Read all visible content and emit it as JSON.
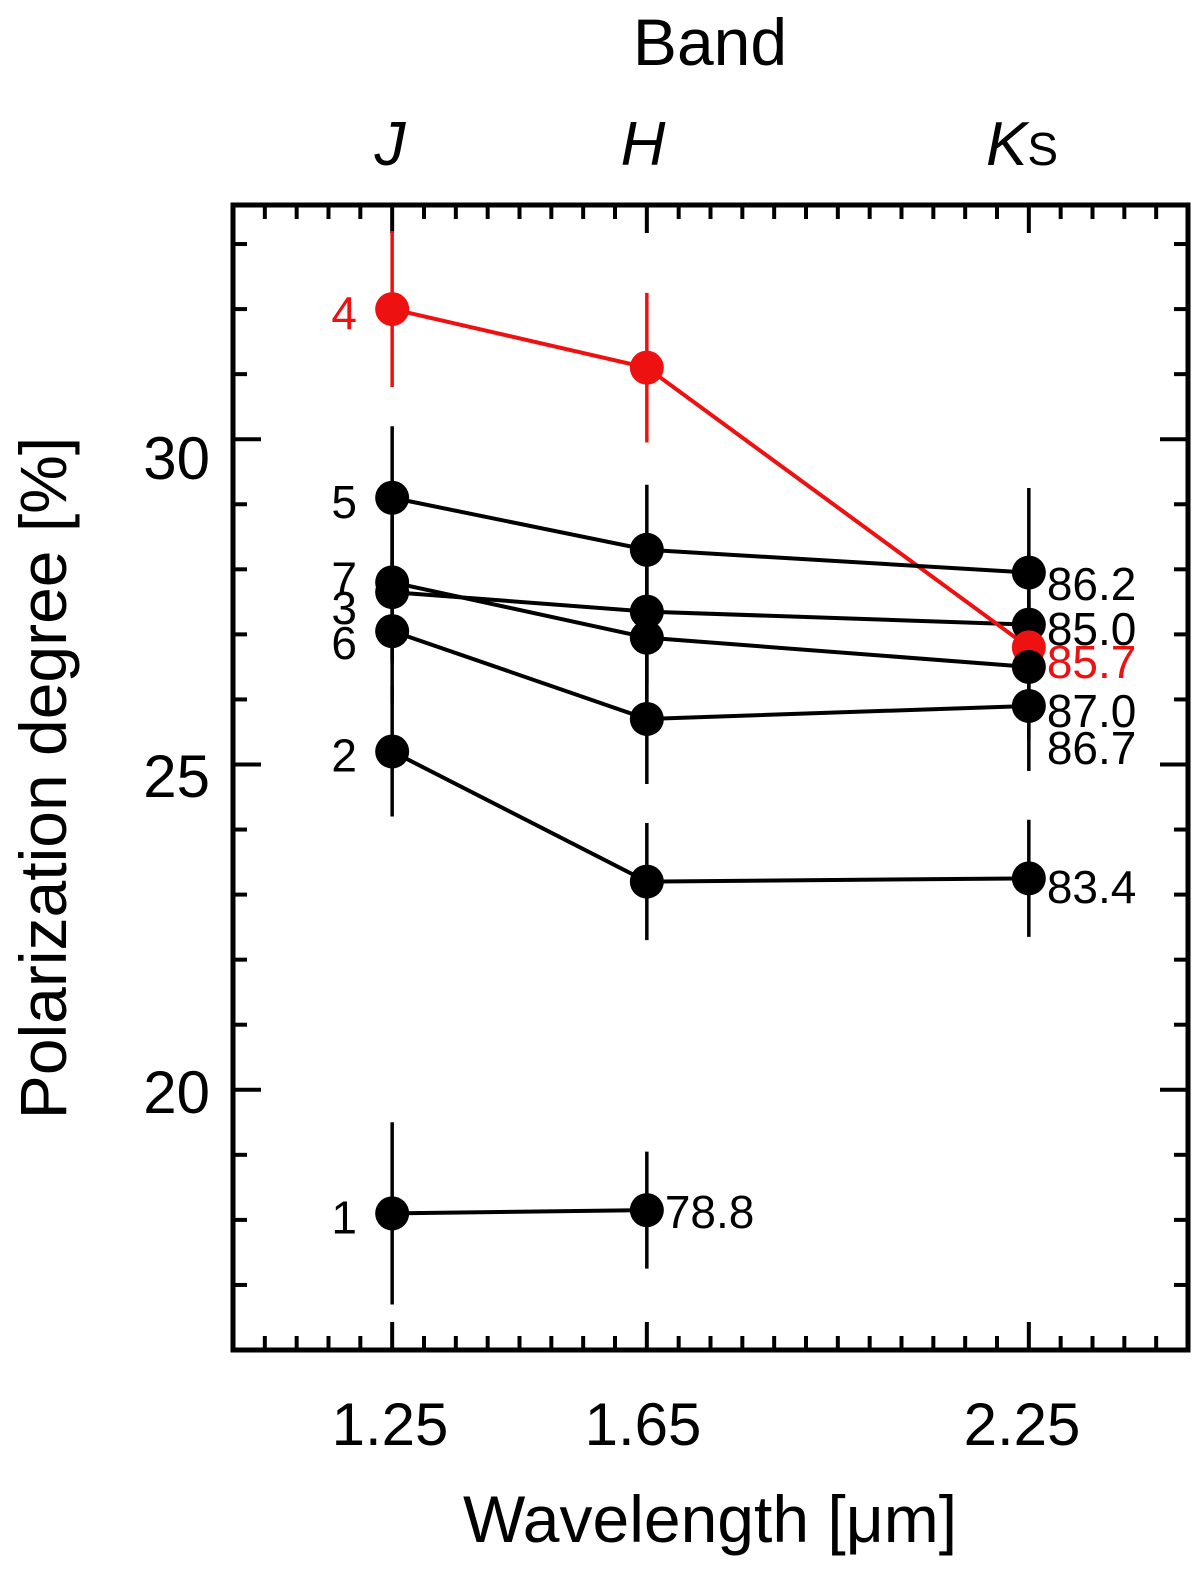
{
  "chart_data": {
    "type": "line",
    "top_axis_title": "Band",
    "bands": [
      {
        "name": "J",
        "sub": "",
        "x": 1.25
      },
      {
        "name": "H",
        "sub": "",
        "x": 1.65
      },
      {
        "name": "K",
        "sub": "S",
        "x": 2.25
      }
    ],
    "xlabel": "Wavelength [μm]",
    "ylabel": "Polarization degree [%]",
    "xlim": [
      1.0,
      2.5
    ],
    "ylim": [
      16.0,
      33.6
    ],
    "x_tick_labels": [
      "1.25",
      "1.65",
      "2.25"
    ],
    "x_tick_values": [
      1.25,
      1.65,
      2.25
    ],
    "y_tick_labels": [
      "20",
      "25",
      "30"
    ],
    "y_tick_values": [
      20,
      25,
      30
    ],
    "x_minor_step": 0.05,
    "y_minor_step": 1,
    "colors": {
      "default": "#000000",
      "highlight": "#ee1111"
    },
    "series": [
      {
        "name": "1",
        "highlight": false,
        "x": [
          1.25,
          1.65
        ],
        "y": [
          18.1,
          18.15
        ],
        "err": [
          1.4,
          0.9
        ],
        "end_label": "78.8"
      },
      {
        "name": "2",
        "highlight": false,
        "x": [
          1.25,
          1.65,
          2.25
        ],
        "y": [
          25.2,
          23.2,
          23.25
        ],
        "err": [
          1.0,
          0.9,
          0.9
        ],
        "end_label": "83.4"
      },
      {
        "name": "3",
        "highlight": false,
        "x": [
          1.25,
          1.65,
          2.25
        ],
        "y": [
          27.65,
          27.35,
          27.15
        ],
        "err": [
          1.1,
          1.1,
          1.1
        ],
        "end_label": "85.0"
      },
      {
        "name": "4",
        "highlight": true,
        "x": [
          1.25,
          1.65,
          2.25
        ],
        "y": [
          32.0,
          31.1,
          26.8
        ],
        "err": [
          1.2,
          1.15,
          1.2
        ],
        "end_label": "85.7"
      },
      {
        "name": "5",
        "highlight": false,
        "x": [
          1.25,
          1.65,
          2.25
        ],
        "y": [
          29.1,
          28.3,
          27.95
        ],
        "err": [
          1.1,
          1.0,
          1.3
        ],
        "end_label": "86.2"
      },
      {
        "name": "6",
        "highlight": false,
        "x": [
          1.25,
          1.65,
          2.25
        ],
        "y": [
          27.05,
          25.7,
          25.9
        ],
        "err": [
          1.1,
          1.0,
          1.0
        ],
        "end_label": "86.7"
      },
      {
        "name": "7",
        "highlight": false,
        "x": [
          1.25,
          1.65,
          2.25
        ],
        "y": [
          27.8,
          26.95,
          26.5
        ],
        "err": [
          1.2,
          1.1,
          1.1
        ],
        "end_label": "87.0"
      }
    ]
  }
}
